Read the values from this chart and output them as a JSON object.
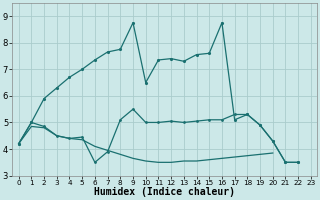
{
  "xlabel": "Humidex (Indice chaleur)",
  "x": [
    0,
    1,
    2,
    3,
    4,
    5,
    6,
    7,
    8,
    9,
    10,
    11,
    12,
    13,
    14,
    15,
    16,
    17,
    18,
    19,
    20,
    21,
    22,
    23
  ],
  "line_upper": [
    4.2,
    5.0,
    5.9,
    6.3,
    6.7,
    7.0,
    7.35,
    7.65,
    7.75,
    8.75,
    6.5,
    7.35,
    7.4,
    7.3,
    7.55,
    7.6,
    8.75,
    5.1,
    5.3,
    4.9,
    4.3,
    3.5,
    3.5,
    null
  ],
  "line_mid": [
    4.2,
    5.0,
    4.85,
    4.5,
    4.4,
    4.45,
    3.5,
    3.9,
    5.1,
    5.5,
    5.0,
    5.0,
    5.05,
    5.0,
    5.05,
    5.1,
    5.1,
    5.3,
    5.3,
    4.9,
    4.3,
    3.5,
    3.5,
    null
  ],
  "line_lower": [
    4.2,
    4.85,
    4.8,
    4.5,
    4.4,
    4.35,
    4.1,
    3.95,
    3.8,
    3.65,
    3.55,
    3.5,
    3.5,
    3.55,
    3.55,
    3.6,
    3.65,
    3.7,
    3.75,
    3.8,
    3.85,
    null,
    null,
    null
  ],
  "ylim": [
    3.0,
    9.5
  ],
  "xlim": [
    -0.5,
    23.5
  ],
  "bg_color": "#cce8e8",
  "line_color": "#1a7070",
  "grid_color": "#aacccc",
  "tick_fontsize": 6,
  "xlabel_fontsize": 7
}
